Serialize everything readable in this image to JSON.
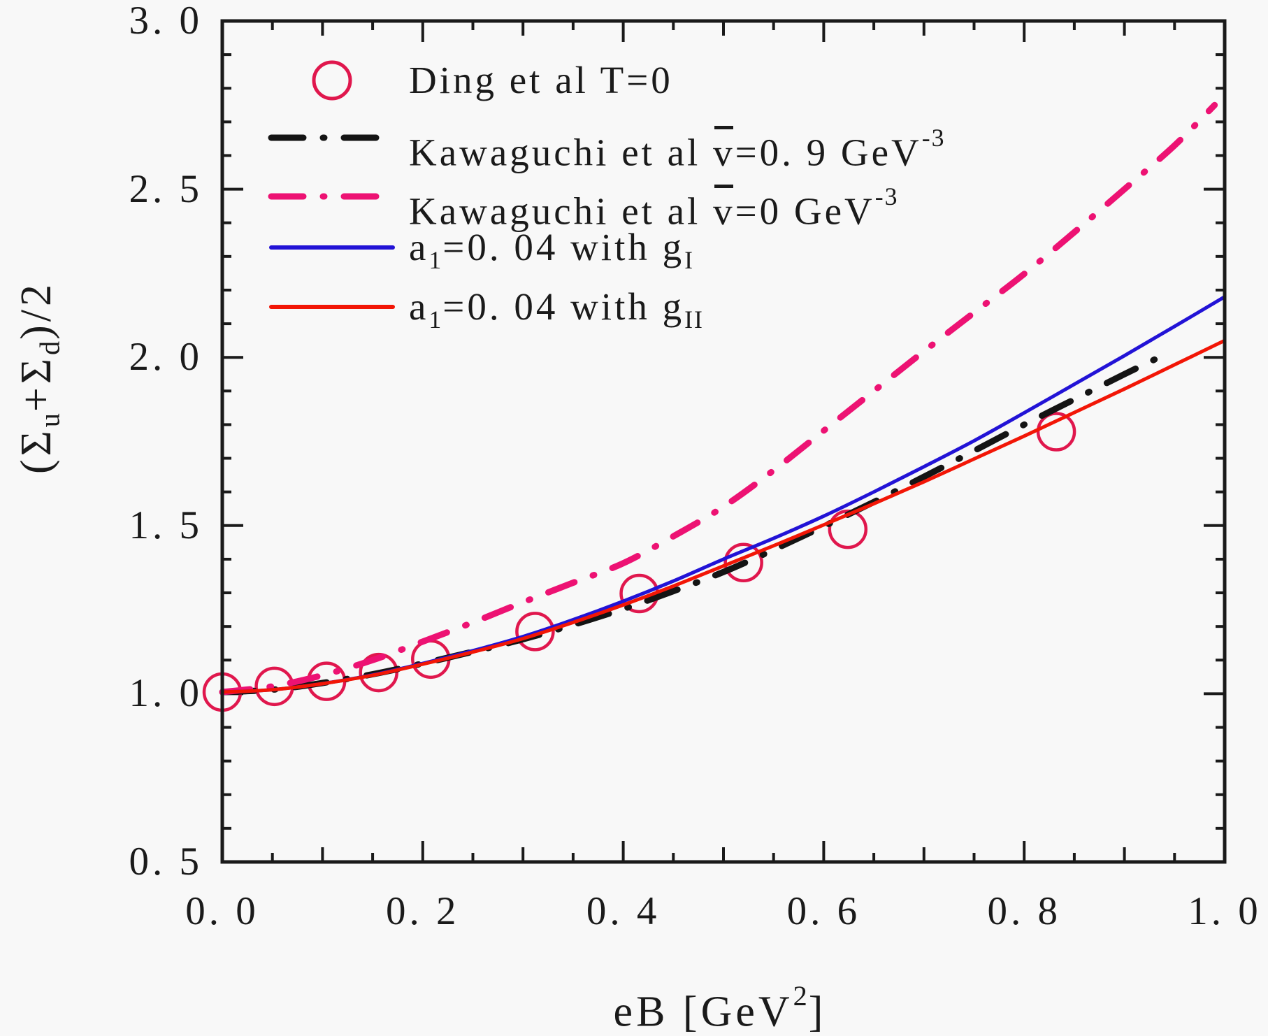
{
  "figure": {
    "background": "#f8f8f8",
    "frame_color": "#1a1a1a"
  },
  "chart_data": {
    "type": "line",
    "title": "",
    "xlabel": "eB [GeV^2]",
    "ylabel": "(Sigma_u + Sigma_d)/2",
    "xlim": [
      0.0,
      1.0
    ],
    "ylim": [
      0.5,
      3.0
    ],
    "grid": false,
    "legend_position": "top-left-inside",
    "axes": {
      "x": {
        "min": 0.0,
        "max": 1.0,
        "label_segments": [
          {
            "t": "eB [GeV"
          },
          {
            "t": "2",
            "sup": true
          },
          {
            "t": "]"
          }
        ],
        "major_values": [
          0.0,
          0.2,
          0.4,
          0.6,
          0.8,
          1.0
        ],
        "major_labels": [
          "0. 0",
          "0. 2",
          "0. 4",
          "0. 6",
          "0. 8",
          "1. 0"
        ],
        "medium_values": [
          0.1,
          0.3,
          0.5,
          0.7,
          0.9
        ],
        "minor_values": [
          0.05,
          0.15,
          0.25,
          0.35,
          0.45,
          0.55,
          0.65,
          0.75,
          0.85,
          0.95
        ]
      },
      "y": {
        "min": 0.5,
        "max": 3.0,
        "label_segments": [
          {
            "t": "(Σ"
          },
          {
            "t": "u",
            "sub": true
          },
          {
            "t": "+Σ"
          },
          {
            "t": "d",
            "sub": true
          },
          {
            "t": ")/2"
          }
        ],
        "major_values": [
          0.5,
          1.0,
          1.5,
          2.0,
          2.5,
          3.0
        ],
        "major_labels": [
          "0. 5",
          "1. 0",
          "1. 5",
          "2. 0",
          "2. 5",
          "3. 0"
        ],
        "medium_values": [],
        "minor_values": [
          0.6,
          0.7,
          0.8,
          0.9,
          1.1,
          1.2,
          1.3,
          1.4,
          1.6,
          1.7,
          1.8,
          1.9,
          2.1,
          2.2,
          2.3,
          2.4,
          2.6,
          2.7,
          2.8,
          2.9
        ]
      }
    },
    "series": [
      {
        "id": "ding",
        "name": "Ding et al T=0",
        "type": "scatter",
        "marker": "open-circle",
        "color": "#e0174d",
        "points": [
          [
            0.0,
            1.005
          ],
          [
            0.052,
            1.022
          ],
          [
            0.104,
            1.037
          ],
          [
            0.156,
            1.063
          ],
          [
            0.208,
            1.103
          ],
          [
            0.312,
            1.185
          ],
          [
            0.416,
            1.298
          ],
          [
            0.52,
            1.39
          ],
          [
            0.624,
            1.489
          ],
          [
            0.832,
            1.779
          ]
        ]
      },
      {
        "id": "kawaguchi_v09",
        "name": "Kawaguchi et al vbar=0.9 GeV^-3",
        "type": "line",
        "dash": "dashdot",
        "color": "#141414",
        "width": 9,
        "points": [
          [
            0.0,
            1.005
          ],
          [
            0.05,
            1.012
          ],
          [
            0.1,
            1.032
          ],
          [
            0.15,
            1.058
          ],
          [
            0.2,
            1.09
          ],
          [
            0.25,
            1.125
          ],
          [
            0.3,
            1.162
          ],
          [
            0.35,
            1.205
          ],
          [
            0.4,
            1.252
          ],
          [
            0.45,
            1.305
          ],
          [
            0.5,
            1.362
          ],
          [
            0.55,
            1.428
          ],
          [
            0.6,
            1.498
          ],
          [
            0.65,
            1.57
          ],
          [
            0.7,
            1.645
          ],
          [
            0.75,
            1.722
          ],
          [
            0.8,
            1.8
          ],
          [
            0.85,
            1.875
          ],
          [
            0.9,
            1.95
          ],
          [
            0.945,
            2.015
          ]
        ]
      },
      {
        "id": "kawaguchi_v0",
        "name": "Kawaguchi et al vbar=0 GeV^-3",
        "type": "line",
        "dash": "dashdot",
        "color": "#ed1273",
        "width": 9,
        "points": [
          [
            0.0,
            1.005
          ],
          [
            0.05,
            1.022
          ],
          [
            0.1,
            1.055
          ],
          [
            0.15,
            1.1
          ],
          [
            0.2,
            1.155
          ],
          [
            0.25,
            1.212
          ],
          [
            0.3,
            1.272
          ],
          [
            0.35,
            1.33
          ],
          [
            0.4,
            1.388
          ],
          [
            0.45,
            1.468
          ],
          [
            0.5,
            1.556
          ],
          [
            0.55,
            1.664
          ],
          [
            0.6,
            1.782
          ],
          [
            0.65,
            1.9
          ],
          [
            0.7,
            2.018
          ],
          [
            0.75,
            2.133
          ],
          [
            0.8,
            2.248
          ],
          [
            0.85,
            2.372
          ],
          [
            0.9,
            2.5
          ],
          [
            0.95,
            2.63
          ],
          [
            0.99,
            2.75
          ]
        ]
      },
      {
        "id": "a1_gI",
        "name": "a1=0.04 with gI",
        "type": "line",
        "dash": "solid",
        "color": "#2213d6",
        "width": 5,
        "points": [
          [
            0.0,
            1.005
          ],
          [
            0.05,
            1.012
          ],
          [
            0.1,
            1.03
          ],
          [
            0.15,
            1.056
          ],
          [
            0.2,
            1.09
          ],
          [
            0.25,
            1.128
          ],
          [
            0.3,
            1.17
          ],
          [
            0.35,
            1.22
          ],
          [
            0.4,
            1.275
          ],
          [
            0.45,
            1.335
          ],
          [
            0.5,
            1.4
          ],
          [
            0.55,
            1.462
          ],
          [
            0.6,
            1.528
          ],
          [
            0.65,
            1.6
          ],
          [
            0.7,
            1.675
          ],
          [
            0.75,
            1.752
          ],
          [
            0.8,
            1.835
          ],
          [
            0.85,
            1.92
          ],
          [
            0.9,
            2.005
          ],
          [
            0.95,
            2.092
          ],
          [
            1.0,
            2.18
          ]
        ]
      },
      {
        "id": "a1_gII",
        "name": "a1=0.04 with gII",
        "type": "line",
        "dash": "solid",
        "color": "#f21606",
        "width": 5,
        "points": [
          [
            0.0,
            1.005
          ],
          [
            0.05,
            1.012
          ],
          [
            0.1,
            1.03
          ],
          [
            0.15,
            1.055
          ],
          [
            0.2,
            1.088
          ],
          [
            0.25,
            1.124
          ],
          [
            0.3,
            1.164
          ],
          [
            0.35,
            1.212
          ],
          [
            0.4,
            1.264
          ],
          [
            0.45,
            1.32
          ],
          [
            0.5,
            1.38
          ],
          [
            0.55,
            1.44
          ],
          [
            0.6,
            1.502
          ],
          [
            0.65,
            1.565
          ],
          [
            0.7,
            1.63
          ],
          [
            0.75,
            1.698
          ],
          [
            0.8,
            1.766
          ],
          [
            0.85,
            1.836
          ],
          [
            0.9,
            1.906
          ],
          [
            0.95,
            1.978
          ],
          [
            1.0,
            2.05
          ]
        ]
      }
    ],
    "legend": {
      "entries": [
        {
          "series": "ding",
          "marker": "circle",
          "color": "#e0174d",
          "segments": [
            {
              "t": "Ding et al T=0"
            }
          ]
        },
        {
          "series": "kawaguchi_v09",
          "marker": "dashdot",
          "color": "#141414",
          "segments": [
            {
              "t": "Kawaguchi et al "
            },
            {
              "t": "v",
              "bar": true
            },
            {
              "t": "=0. 9 GeV"
            },
            {
              "t": "-3",
              "sup": true
            }
          ]
        },
        {
          "series": "kawaguchi_v0",
          "marker": "dashdot",
          "color": "#ed1273",
          "segments": [
            {
              "t": "Kawaguchi et al "
            },
            {
              "t": "v",
              "bar": true
            },
            {
              "t": "=0 GeV"
            },
            {
              "t": "-3",
              "sup": true
            }
          ]
        },
        {
          "series": "a1_gI",
          "marker": "solid",
          "color": "#2213d6",
          "segments": [
            {
              "t": "a"
            },
            {
              "t": "1",
              "sub": true
            },
            {
              "t": "=0. 04 with g"
            },
            {
              "t": "I",
              "sub": true
            }
          ]
        },
        {
          "series": "a1_gII",
          "marker": "solid",
          "color": "#f21606",
          "segments": [
            {
              "t": "a"
            },
            {
              "t": "1",
              "sub": true
            },
            {
              "t": "=0. 04 with g"
            },
            {
              "t": "II",
              "sub": true
            }
          ]
        }
      ]
    }
  }
}
